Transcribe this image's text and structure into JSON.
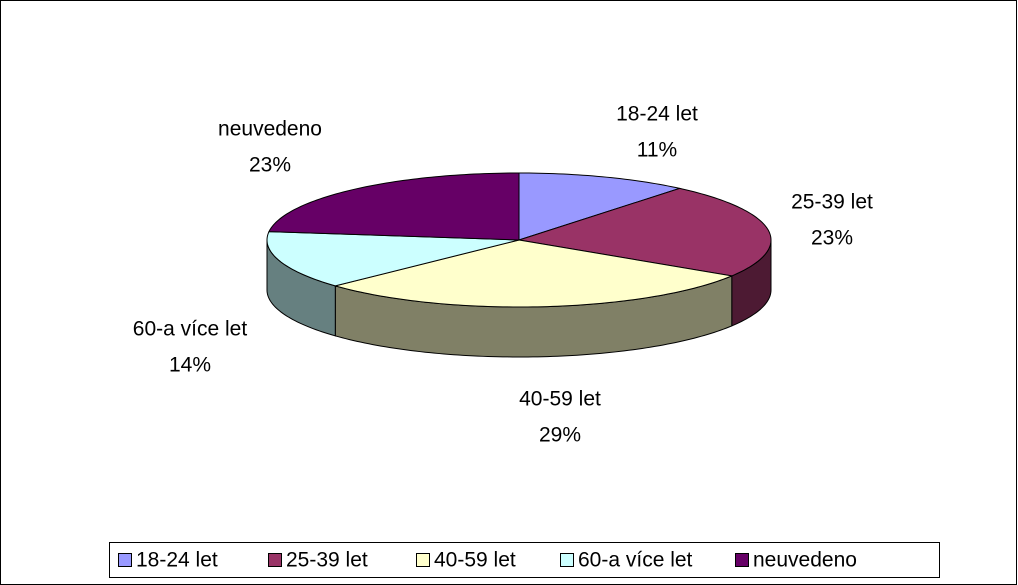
{
  "chart_data": {
    "type": "pie",
    "categories": [
      "18-24 let",
      "25-39 let",
      "40-59 let",
      "60-a více let",
      "neuvedeno"
    ],
    "values": [
      11,
      23,
      29,
      14,
      23
    ],
    "value_labels": [
      "11%",
      "23%",
      "29%",
      "14%",
      "23%"
    ],
    "colors": [
      "#9999ff",
      "#993366",
      "#ffffcc",
      "#ccffff",
      "#660066"
    ],
    "legend": "bottom",
    "three_d": true
  }
}
